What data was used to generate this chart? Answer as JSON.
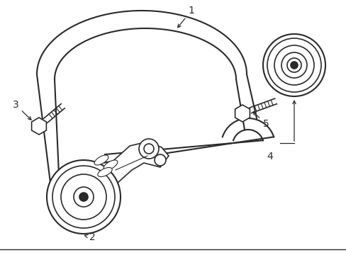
{
  "bg_color": "#ffffff",
  "line_color": "#2a2a2a",
  "label_color": "#000000",
  "belt_lw": 1.5,
  "component_lw": 1.2,
  "figsize": [
    4.89,
    3.6
  ],
  "dpi": 100
}
